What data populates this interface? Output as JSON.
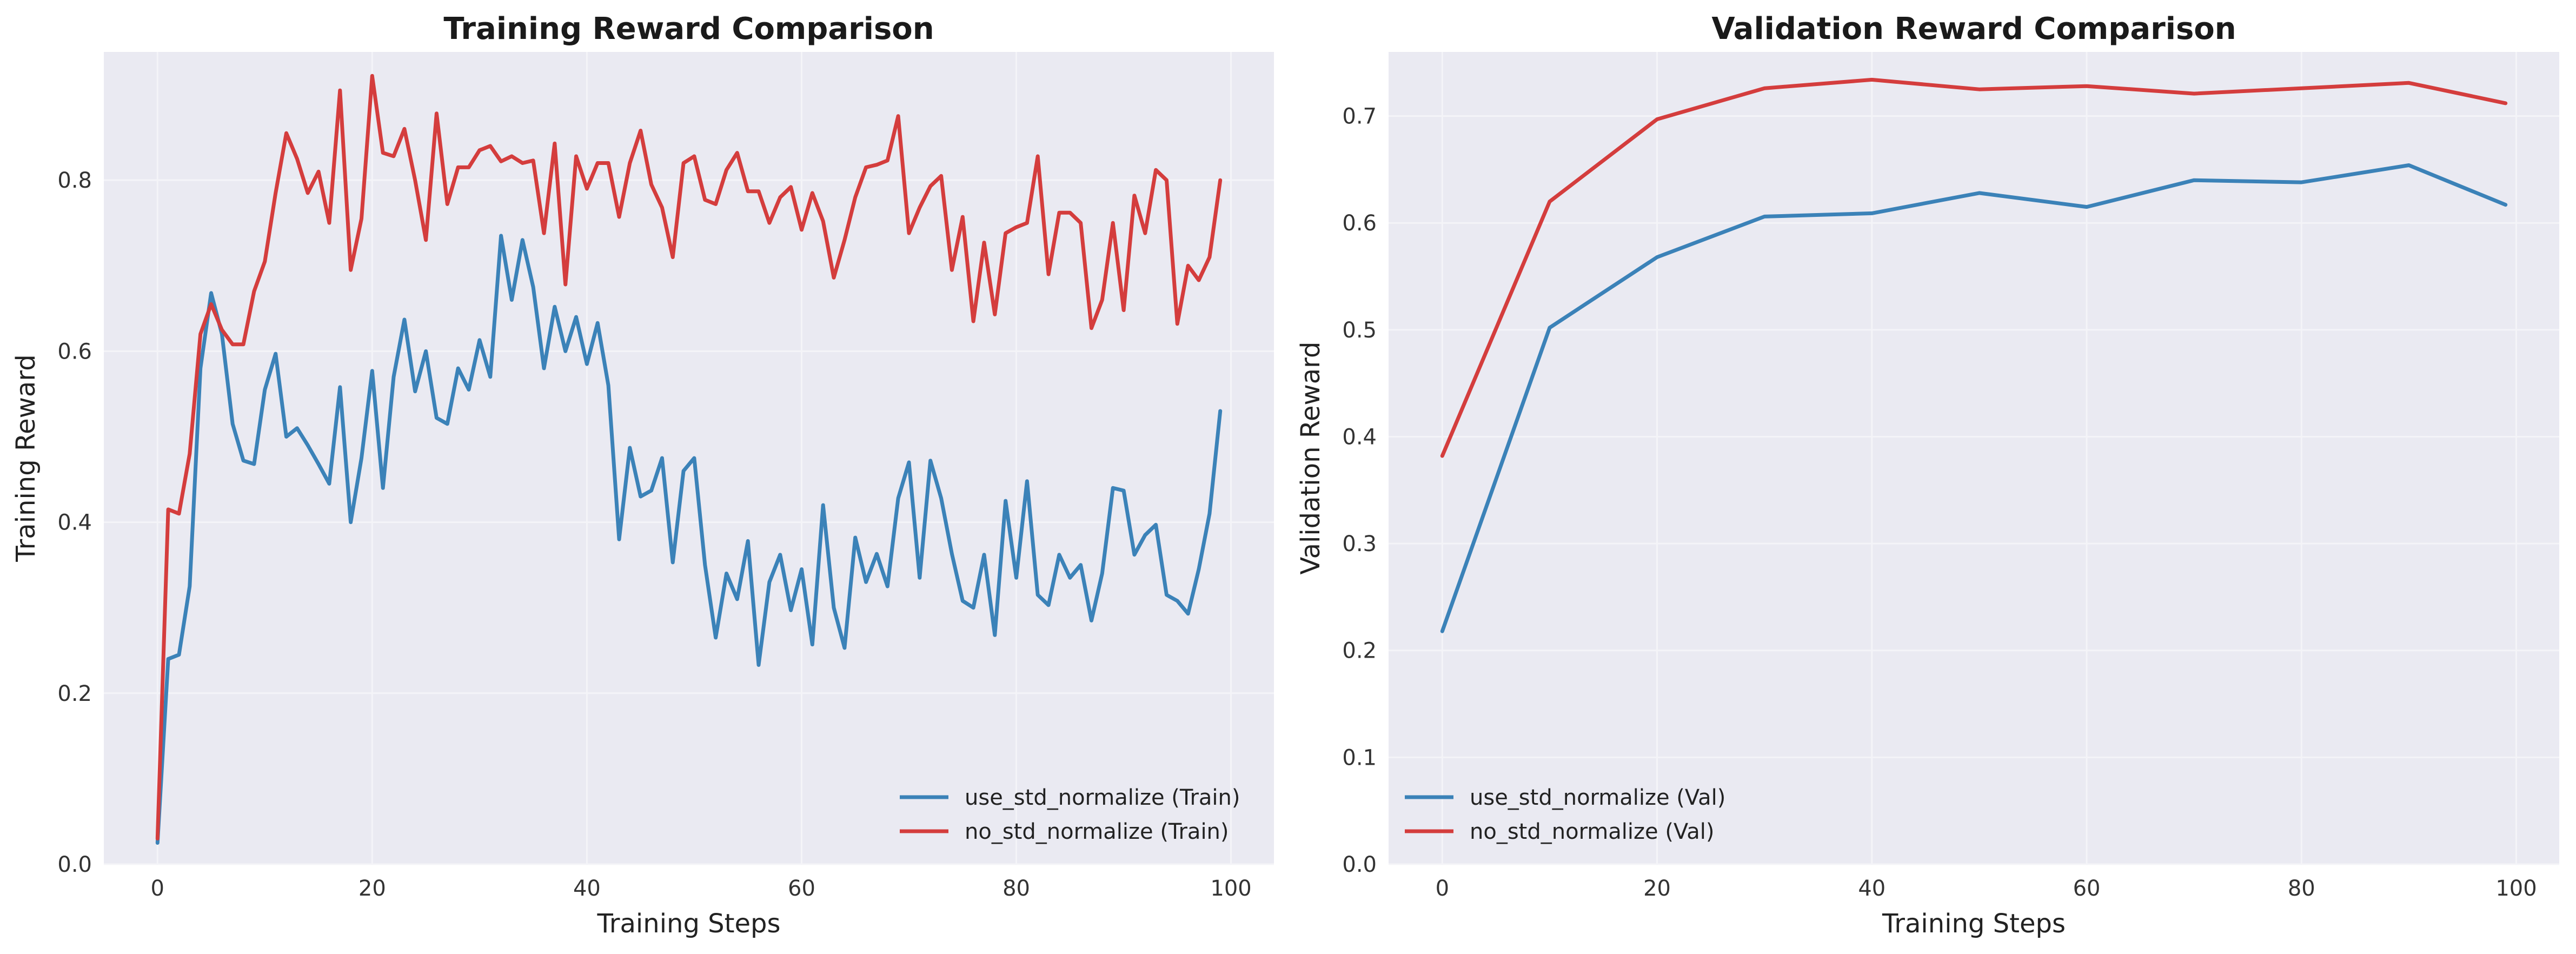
{
  "colors": {
    "use_std": "#3b82b8",
    "no_std": "#d43d3d",
    "plot_bg": "#eaeaf2",
    "grid": "#f4f4f8"
  },
  "chart_data": [
    {
      "type": "line",
      "title": "Training Reward Comparison",
      "xlabel": "Training Steps",
      "ylabel": "Training Reward",
      "xlim": [
        -5,
        104
      ],
      "ylim": [
        0,
        0.95
      ],
      "xticks": [
        0,
        20,
        40,
        60,
        80,
        100
      ],
      "yticks": [
        0.0,
        0.2,
        0.4,
        0.6,
        0.8
      ],
      "xtick_labels": [
        "0",
        "20",
        "40",
        "60",
        "80",
        "100"
      ],
      "ytick_labels": [
        "0.0",
        "0.2",
        "0.4",
        "0.6",
        "0.8"
      ],
      "legend_position": "lower-right",
      "grid": true,
      "series": [
        {
          "name": "use_std_normalize (Train)",
          "color_key": "use_std",
          "x": [
            0,
            1,
            2,
            3,
            4,
            5,
            6,
            7,
            8,
            9,
            10,
            11,
            12,
            13,
            14,
            15,
            16,
            17,
            18,
            19,
            20,
            21,
            22,
            23,
            24,
            25,
            26,
            27,
            28,
            29,
            30,
            31,
            32,
            33,
            34,
            35,
            36,
            37,
            38,
            39,
            40,
            41,
            42,
            43,
            44,
            45,
            46,
            47,
            48,
            49,
            50,
            51,
            52,
            53,
            54,
            55,
            56,
            57,
            58,
            59,
            60,
            61,
            62,
            63,
            64,
            65,
            66,
            67,
            68,
            69,
            70,
            71,
            72,
            73,
            74,
            75,
            76,
            77,
            78,
            79,
            80,
            81,
            82,
            83,
            84,
            85,
            86,
            87,
            88,
            89,
            90,
            91,
            92,
            93,
            94,
            95,
            96,
            97,
            98,
            99
          ],
          "values": [
            0.025,
            0.24,
            0.245,
            0.325,
            0.58,
            0.668,
            0.62,
            0.515,
            0.472,
            0.468,
            0.555,
            0.597,
            0.5,
            0.51,
            0.49,
            0.468,
            0.445,
            0.558,
            0.4,
            0.475,
            0.577,
            0.44,
            0.57,
            0.637,
            0.553,
            0.6,
            0.522,
            0.515,
            0.58,
            0.555,
            0.613,
            0.57,
            0.735,
            0.66,
            0.73,
            0.675,
            0.58,
            0.652,
            0.6,
            0.64,
            0.585,
            0.633,
            0.56,
            0.38,
            0.487,
            0.43,
            0.437,
            0.475,
            0.353,
            0.46,
            0.475,
            0.35,
            0.265,
            0.34,
            0.31,
            0.378,
            0.233,
            0.33,
            0.362,
            0.297,
            0.345,
            0.257,
            0.42,
            0.3,
            0.253,
            0.382,
            0.33,
            0.363,
            0.325,
            0.428,
            0.47,
            0.335,
            0.472,
            0.428,
            0.363,
            0.308,
            0.3,
            0.362,
            0.268,
            0.425,
            0.335,
            0.448,
            0.315,
            0.303,
            0.362,
            0.335,
            0.35,
            0.285,
            0.34,
            0.44,
            0.437,
            0.362,
            0.385,
            0.397,
            0.315,
            0.308,
            0.293,
            0.345,
            0.41,
            0.53
          ]
        },
        {
          "name": "no_std_normalize (Train)",
          "color_key": "no_std",
          "x": [
            0,
            1,
            2,
            3,
            4,
            5,
            6,
            7,
            8,
            9,
            10,
            11,
            12,
            13,
            14,
            15,
            16,
            17,
            18,
            19,
            20,
            21,
            22,
            23,
            24,
            25,
            26,
            27,
            28,
            29,
            30,
            31,
            32,
            33,
            34,
            35,
            36,
            37,
            38,
            39,
            40,
            41,
            42,
            43,
            44,
            45,
            46,
            47,
            48,
            49,
            50,
            51,
            52,
            53,
            54,
            55,
            56,
            57,
            58,
            59,
            60,
            61,
            62,
            63,
            64,
            65,
            66,
            67,
            68,
            69,
            70,
            71,
            72,
            73,
            74,
            75,
            76,
            77,
            78,
            79,
            80,
            81,
            82,
            83,
            84,
            85,
            86,
            87,
            88,
            89,
            90,
            91,
            92,
            93,
            94,
            95,
            96,
            97,
            98,
            99
          ],
          "values": [
            0.03,
            0.415,
            0.41,
            0.48,
            0.62,
            0.655,
            0.625,
            0.608,
            0.608,
            0.67,
            0.705,
            0.785,
            0.855,
            0.825,
            0.785,
            0.81,
            0.75,
            0.905,
            0.695,
            0.755,
            0.922,
            0.832,
            0.828,
            0.86,
            0.8,
            0.73,
            0.878,
            0.772,
            0.815,
            0.815,
            0.835,
            0.84,
            0.822,
            0.828,
            0.82,
            0.823,
            0.738,
            0.843,
            0.678,
            0.828,
            0.79,
            0.82,
            0.82,
            0.757,
            0.82,
            0.858,
            0.795,
            0.768,
            0.71,
            0.82,
            0.828,
            0.777,
            0.772,
            0.812,
            0.832,
            0.787,
            0.787,
            0.75,
            0.78,
            0.792,
            0.742,
            0.785,
            0.752,
            0.686,
            0.73,
            0.78,
            0.815,
            0.818,
            0.823,
            0.875,
            0.738,
            0.768,
            0.793,
            0.805,
            0.695,
            0.757,
            0.635,
            0.727,
            0.643,
            0.738,
            0.745,
            0.75,
            0.828,
            0.69,
            0.762,
            0.762,
            0.75,
            0.627,
            0.66,
            0.75,
            0.648,
            0.782,
            0.738,
            0.812,
            0.8,
            0.632,
            0.7,
            0.683,
            0.71,
            0.8
          ]
        }
      ]
    },
    {
      "type": "line",
      "title": "Validation Reward Comparison",
      "xlabel": "Training Steps",
      "ylabel": "Validation Reward",
      "xlim": [
        -5,
        104
      ],
      "ylim": [
        0,
        0.76
      ],
      "xticks": [
        0,
        20,
        40,
        60,
        80,
        100
      ],
      "yticks": [
        0.0,
        0.1,
        0.2,
        0.3,
        0.4,
        0.5,
        0.6,
        0.7
      ],
      "xtick_labels": [
        "0",
        "20",
        "40",
        "60",
        "80",
        "100"
      ],
      "ytick_labels": [
        "0.0",
        "0.1",
        "0.2",
        "0.3",
        "0.4",
        "0.5",
        "0.6",
        "0.7"
      ],
      "legend_position": "lower-left",
      "grid": true,
      "series": [
        {
          "name": "use_std_normalize (Val)",
          "color_key": "use_std",
          "x": [
            0,
            10,
            20,
            30,
            40,
            50,
            60,
            70,
            80,
            90,
            99
          ],
          "values": [
            0.218,
            0.502,
            0.568,
            0.606,
            0.609,
            0.628,
            0.615,
            0.64,
            0.638,
            0.654,
            0.617
          ]
        },
        {
          "name": "no_std_normalize (Val)",
          "color_key": "no_std",
          "x": [
            0,
            10,
            20,
            30,
            40,
            50,
            60,
            70,
            80,
            90,
            99
          ],
          "values": [
            0.382,
            0.62,
            0.697,
            0.726,
            0.734,
            0.725,
            0.728,
            0.721,
            0.726,
            0.731,
            0.712
          ]
        }
      ]
    }
  ]
}
